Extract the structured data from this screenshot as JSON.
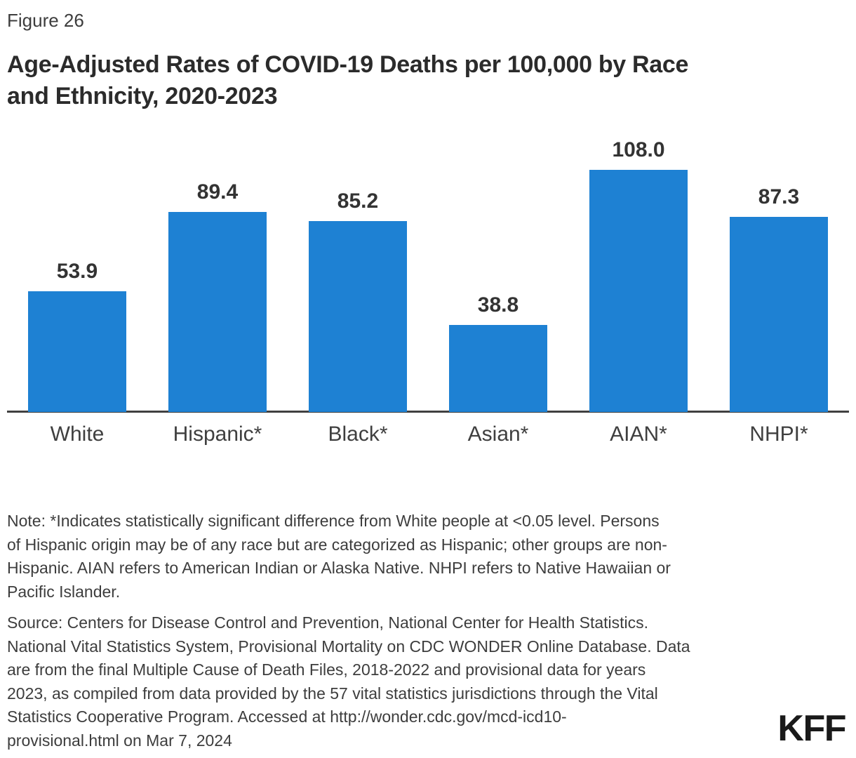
{
  "figure_label": "Figure 26",
  "title": "Age-Adjusted Rates of COVID-19 Deaths per 100,000 by Race and Ethnicity, 2020-2023",
  "title_lines": [
    "Age-Adjusted Rates of COVID-19 Deaths per 100,000 by Race",
    "and Ethnicity, 2020-2023"
  ],
  "chart_data": {
    "type": "bar",
    "title": "Age-Adjusted Rates of COVID-19 Deaths per 100,000 by Race and Ethnicity, 2020-2023",
    "categories": [
      "White",
      "Hispanic*",
      "Black*",
      "Asian*",
      "AIAN*",
      "NHPI*"
    ],
    "values": [
      53.9,
      89.4,
      85.2,
      38.8,
      108.0,
      87.3
    ],
    "value_labels": [
      "53.9",
      "89.4",
      "85.2",
      "38.8",
      "108.0",
      "87.3"
    ],
    "xlabel": "",
    "ylabel": "",
    "ylim": [
      0,
      115
    ],
    "grid": false,
    "legend": "none",
    "data_labels_position": "above bars",
    "bar_color": "#1E81D3",
    "axis_color": "#404040"
  },
  "note_lines": [
    "Note: *Indicates statistically significant difference from White people at <0.05 level. Persons",
    "of Hispanic origin may be of any race but are categorized as Hispanic; other groups are non-",
    "Hispanic. AIAN refers to American Indian or Alaska Native. NHPI refers to Native Hawaiian or",
    "Pacific Islander."
  ],
  "source_lines": [
    "Source: Centers for Disease Control and Prevention, National Center for Health Statistics.",
    "National Vital Statistics System, Provisional Mortality on CDC WONDER Online Database. Data",
    "are from the final Multiple Cause of Death Files, 2018-2022 and provisional data for years",
    "2023, as compiled from data provided by the 57 vital statistics jurisdictions through the Vital",
    "Statistics Cooperative Program. Accessed at http://wonder.cdc.gov/mcd-icd10-",
    "provisional.html on Mar 7, 2024"
  ],
  "logo_text": "KFF",
  "colors": {
    "bar": "#1E81D3",
    "axis": "#404040",
    "title_text": "#2B2B2B",
    "body_text": "#3D3D3D",
    "value_text": "#333333",
    "logo_text": "#1A1A1A",
    "background": "#FFFFFF"
  }
}
